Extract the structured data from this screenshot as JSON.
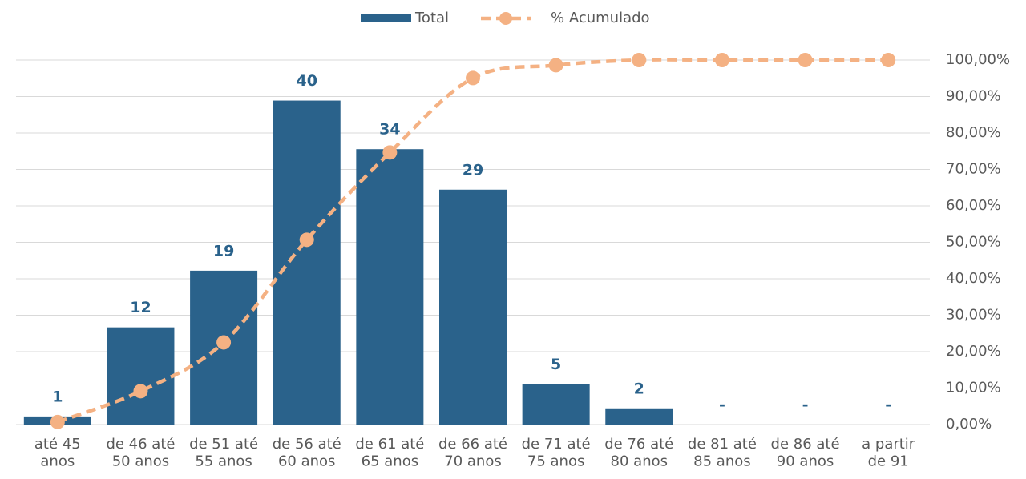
{
  "chart_data": {
    "type": "bar",
    "categories": [
      "até 45\nanos",
      "de 46 até\n50 anos",
      "de 51 até\n55 anos",
      "de 56 até\n60 anos",
      "de 61 até\n65 anos",
      "de 66 até\n70 anos",
      "de 71 até\n75 anos",
      "de 76 até\n80 anos",
      "de 81 até\n85 anos",
      "de 86 até\n90 anos",
      "a partir\nde 91"
    ],
    "series": [
      {
        "name": "Total",
        "type": "bar",
        "color": "#2a628b",
        "values": [
          1,
          12,
          19,
          40,
          34,
          29,
          5,
          2,
          0,
          0,
          0
        ],
        "value_labels": [
          "1",
          "12",
          "19",
          "40",
          "34",
          "29",
          "5",
          "2",
          "-",
          "-",
          "-"
        ]
      },
      {
        "name": "% Acumulado",
        "type": "line",
        "axis": "y2",
        "color": "#f4b183",
        "values": [
          0.7,
          9.15,
          22.54,
          50.7,
          74.65,
          95.07,
          98.59,
          100,
          100,
          100,
          100
        ]
      }
    ],
    "ylim": [
      0,
      45
    ],
    "y2lim": [
      0,
      100
    ],
    "y2ticks": [
      {
        "value": 0,
        "label": "0,00%"
      },
      {
        "value": 10,
        "label": "10,00%"
      },
      {
        "value": 20,
        "label": "20,00%"
      },
      {
        "value": 30,
        "label": "30,00%"
      },
      {
        "value": 40,
        "label": "40,00%"
      },
      {
        "value": 50,
        "label": "50,00%"
      },
      {
        "value": 60,
        "label": "60,00%"
      },
      {
        "value": 70,
        "label": "70,00%"
      },
      {
        "value": 80,
        "label": "80,00%"
      },
      {
        "value": 90,
        "label": "90,00%"
      },
      {
        "value": 100,
        "label": "100,00%"
      }
    ],
    "grid": true,
    "legend": "top"
  }
}
